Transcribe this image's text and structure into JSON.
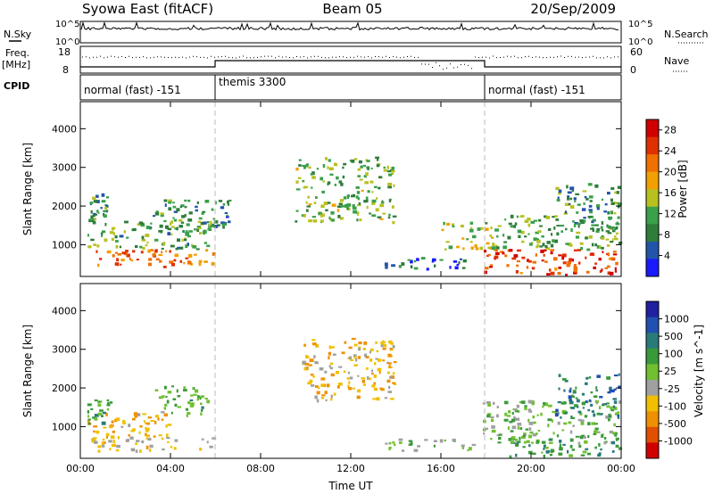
{
  "header": {
    "left": "Syowa East (fitACF)",
    "center": "Beam 05",
    "right": "20/Sep/2009"
  },
  "noise_panel": {
    "left_label": "N.Sky",
    "right_label": "N.Search",
    "y_ticks": [
      "10^5",
      "10^0"
    ]
  },
  "freq_panel": {
    "left_label_line1": "Freq.",
    "left_label_line2": "[MHz]",
    "left_ticks": [
      "18",
      "8"
    ],
    "right_label": "Nave",
    "right_ticks": [
      "60",
      "0"
    ]
  },
  "cpid_panel": {
    "label": "CPID",
    "segments": [
      {
        "name": "normal (fast) -151",
        "start": "00:00",
        "end": "06:00"
      },
      {
        "name": "themis 3300",
        "start": "06:00",
        "end": "18:00"
      },
      {
        "name": "normal (fast) -151",
        "start": "18:00",
        "end": "24:00"
      }
    ]
  },
  "colors": {
    "power_scale": [
      "#1a1aff",
      "#2255aa",
      "#2e7d3a",
      "#3aa04a",
      "#b8c020",
      "#f0a000",
      "#f07000",
      "#e03000",
      "#d00000"
    ],
    "velocity_scale": [
      "#2020a0",
      "#2050b0",
      "#2a7a7a",
      "#3a9a3a",
      "#70c030",
      "#a0a0a0",
      "#f0c000",
      "#f09000",
      "#e05000",
      "#d00000"
    ]
  },
  "chart_data": [
    {
      "type": "heatmap",
      "name": "Power",
      "xlabel": "",
      "ylabel": "Slant Range [km]",
      "x_ticks": [
        "00:00",
        "04:00",
        "08:00",
        "12:00",
        "16:00",
        "20:00",
        "00:00"
      ],
      "y_ticks": [
        "1000",
        "2000",
        "3000",
        "4000"
      ],
      "ylim": [
        180,
        4700
      ],
      "xlim_hours": [
        0,
        24
      ],
      "colorbar_label": "Power [dB]",
      "colorbar_ticks": [
        "4",
        "8",
        "12",
        "16",
        "20",
        "24",
        "28"
      ],
      "colorbar_range": [
        0,
        30
      ],
      "regions": [
        {
          "t0": 0.2,
          "t1": 5.9,
          "r0": 450,
          "r1": 900,
          "value": 22
        },
        {
          "t0": 0.3,
          "t1": 5.8,
          "r0": 900,
          "r1": 1700,
          "value": 11
        },
        {
          "t0": 0.4,
          "t1": 1.2,
          "r0": 1700,
          "r1": 2400,
          "value": 9
        },
        {
          "t0": 3.2,
          "t1": 5.6,
          "r0": 1300,
          "r1": 2200,
          "value": 10
        },
        {
          "t0": 5.8,
          "t1": 6.6,
          "r0": 1500,
          "r1": 2200,
          "value": 8
        },
        {
          "t0": 9.5,
          "t1": 13.9,
          "r0": 1600,
          "r1": 3300,
          "value": 12
        },
        {
          "t0": 13.5,
          "t1": 17.0,
          "r0": 400,
          "r1": 700,
          "value": 6
        },
        {
          "t0": 16.0,
          "t1": 18.5,
          "r0": 900,
          "r1": 1600,
          "value": 14
        },
        {
          "t0": 17.8,
          "t1": 23.9,
          "r0": 250,
          "r1": 900,
          "value": 24
        },
        {
          "t0": 18.5,
          "t1": 23.9,
          "r0": 900,
          "r1": 1800,
          "value": 12
        },
        {
          "t0": 21.0,
          "t1": 23.9,
          "r0": 1400,
          "r1": 2600,
          "value": 9
        }
      ]
    },
    {
      "type": "heatmap",
      "name": "Velocity",
      "xlabel": "Time UT",
      "ylabel": "Slant Range [km]",
      "x_ticks": [
        "00:00",
        "04:00",
        "08:00",
        "12:00",
        "16:00",
        "20:00",
        "00:00"
      ],
      "y_ticks": [
        "1000",
        "2000",
        "3000",
        "4000"
      ],
      "ylim": [
        180,
        4700
      ],
      "xlim_hours": [
        0,
        24
      ],
      "colorbar_label": "Velocity [m s^-1]",
      "colorbar_ticks": [
        "1000",
        "500",
        "100",
        "25",
        "-25",
        "-100",
        "-500",
        "-1000"
      ],
      "colorbar_range": [
        -1200,
        1200
      ],
      "regions": [
        {
          "t0": 0.2,
          "t1": 5.9,
          "r0": 400,
          "r1": 750,
          "value": -250
        },
        {
          "t0": 0.3,
          "t1": 4.0,
          "r0": 750,
          "r1": 1400,
          "value": -450
        },
        {
          "t0": 0.3,
          "t1": 1.5,
          "r0": 1100,
          "r1": 1800,
          "value": 300
        },
        {
          "t0": 3.3,
          "t1": 5.6,
          "r0": 1300,
          "r1": 2100,
          "value": 250
        },
        {
          "t0": 9.8,
          "t1": 13.9,
          "r0": 1700,
          "r1": 3300,
          "value": -350
        },
        {
          "t0": 13.5,
          "t1": 17.5,
          "r0": 400,
          "r1": 700,
          "value": 50
        },
        {
          "t0": 17.8,
          "t1": 23.9,
          "r0": 600,
          "r1": 1700,
          "value": 120
        },
        {
          "t0": 19.0,
          "t1": 23.9,
          "r0": 250,
          "r1": 800,
          "value": 350
        },
        {
          "t0": 21.0,
          "t1": 23.9,
          "r0": 1200,
          "r1": 2400,
          "value": 600
        }
      ]
    }
  ]
}
